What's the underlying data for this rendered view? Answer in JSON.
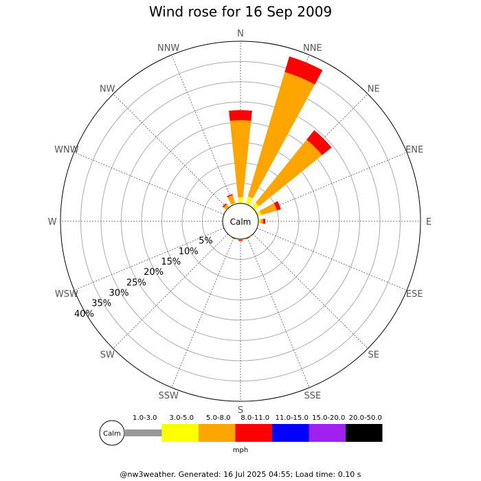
{
  "title": "Wind rose for 16 Sep 2009",
  "footer": "@nw3weather. Generated: 16 Jul 2025 04:55; Load time: 0.10 s",
  "calm_label": "Calm",
  "units_label": "mph",
  "directions": [
    "N",
    "NNE",
    "NE",
    "ENE",
    "E",
    "ESE",
    "SE",
    "SSE",
    "S",
    "SSW",
    "SW",
    "WSW",
    "W",
    "WNW",
    "NW",
    "NNW"
  ],
  "ring_labels": [
    "5%",
    "10%",
    "15%",
    "20%",
    "25%",
    "30%",
    "35%",
    "40%"
  ],
  "speed_bins": [
    {
      "label": "1.0-3.0",
      "color": "#999999"
    },
    {
      "label": "3.0-5.0",
      "color": "#ffff00"
    },
    {
      "label": "5.0-8.0",
      "color": "#ffa500"
    },
    {
      "label": "8.0-11.0",
      "color": "#ff0000"
    },
    {
      "label": "11.0-15.0",
      "color": "#0000ff"
    },
    {
      "label": "15.0-20.0",
      "color": "#a020f0"
    },
    {
      "label": "20.0-50.0",
      "color": "#000000"
    }
  ],
  "chart_data": {
    "type": "wind-rose",
    "title": "Wind rose for 16 Sep 2009",
    "units": "mph",
    "radial_max_percent": 40,
    "radial_ticks": [
      5,
      10,
      15,
      20,
      25,
      30,
      35,
      40
    ],
    "categories": [
      "N",
      "NNE",
      "NE",
      "ENE",
      "E",
      "ESE",
      "SE",
      "SSE",
      "S",
      "SSW",
      "SW",
      "WSW",
      "W",
      "WNW",
      "NW",
      "NNW"
    ],
    "series": [
      {
        "name": "1.0-3.0",
        "values": [
          0,
          0,
          0,
          0,
          0,
          0,
          0,
          0,
          0,
          0,
          0,
          0,
          0,
          0,
          0,
          0
        ]
      },
      {
        "name": "3.0-5.0",
        "values": [
          1.5,
          2.0,
          1.5,
          1.0,
          0.5,
          0,
          0,
          0,
          0,
          0,
          0,
          0,
          0,
          0,
          0.2,
          0.3
        ]
      },
      {
        "name": "5.0-8.0",
        "values": [
          19.0,
          32.0,
          20.0,
          4.0,
          0.7,
          0,
          0,
          0.3,
          0.3,
          0.3,
          0,
          0,
          0,
          0,
          0.8,
          2.0
        ]
      },
      {
        "name": "8.0-11.0",
        "values": [
          2.5,
          4.0,
          3.0,
          1.0,
          0.5,
          0,
          0,
          0,
          0.2,
          0,
          0,
          0,
          0,
          0,
          0.3,
          0.3
        ]
      },
      {
        "name": "11.0-15.0",
        "values": [
          0,
          0,
          0,
          0,
          0,
          0,
          0,
          0,
          0,
          0,
          0,
          0,
          0,
          0,
          0,
          0
        ]
      },
      {
        "name": "15.0-20.0",
        "values": [
          0,
          0,
          0,
          0,
          0,
          0,
          0,
          0,
          0,
          0,
          0,
          0,
          0,
          0,
          0,
          0
        ]
      },
      {
        "name": "20.0-50.0",
        "values": [
          0,
          0,
          0,
          0,
          0,
          0,
          0,
          0,
          0,
          0,
          0,
          0,
          0,
          0,
          0,
          0
        ]
      }
    ],
    "grid": true
  }
}
